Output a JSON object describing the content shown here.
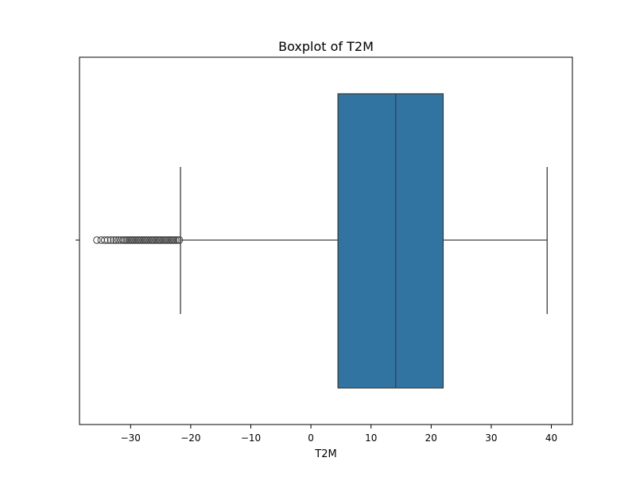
{
  "chart_data": {
    "type": "boxplot",
    "title": "Boxplot of T2M",
    "xlabel": "T2M",
    "ylabel": "",
    "orientation": "horizontal",
    "xlim": [
      -38.5,
      43.5
    ],
    "xticks": [
      -30,
      -20,
      -10,
      0,
      10,
      20,
      30,
      40
    ],
    "xtick_labels": [
      "−30",
      "−20",
      "−10",
      "0",
      "10",
      "20",
      "30",
      "40"
    ],
    "grid": false,
    "box": {
      "whisker_low": -21.7,
      "q1": 4.5,
      "median": 14.1,
      "q3": 22.0,
      "whisker_high": 39.3,
      "fill_color": "#3274a1",
      "line_color": "#3d3d3d"
    },
    "outliers": [
      -35.6,
      -34.9,
      -34.3,
      -33.8,
      -33.3,
      -32.8,
      -32.4,
      -32.0,
      -31.6,
      -31.2,
      -30.9,
      -30.6,
      -30.3,
      -30.0,
      -29.7,
      -29.4,
      -29.1,
      -28.8,
      -28.5,
      -28.2,
      -27.9,
      -27.6,
      -27.3,
      -27.0,
      -26.7,
      -26.4,
      -26.1,
      -25.8,
      -25.5,
      -25.2,
      -24.9,
      -24.6,
      -24.3,
      -24.0,
      -23.7,
      -23.4,
      -23.1,
      -22.8,
      -22.5,
      -22.2,
      -21.9
    ]
  }
}
